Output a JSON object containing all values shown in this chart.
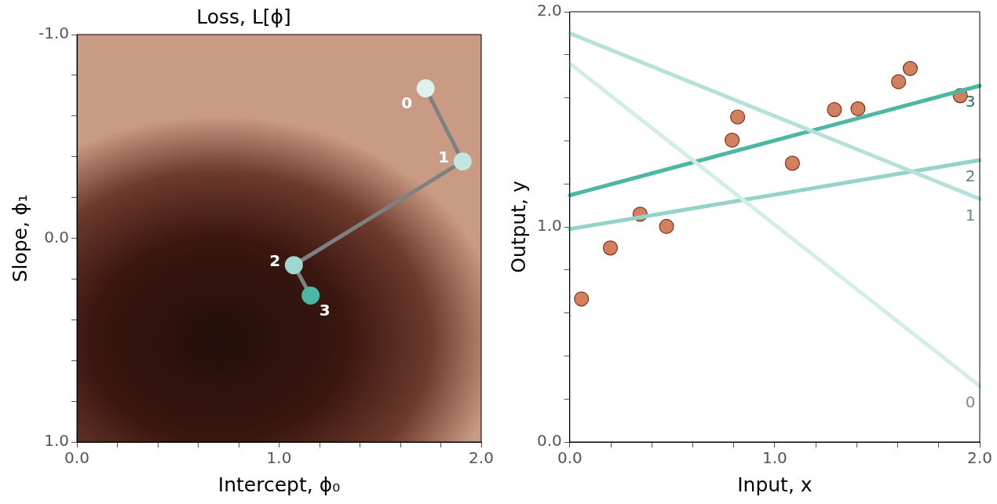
{
  "chart_data": [
    {
      "type": "line",
      "title": "Loss, L[ϕ]",
      "xlabel": "Intercept, ϕ₀",
      "ylabel": "Slope, ϕ₁",
      "xlim": [
        0,
        2
      ],
      "ylim": [
        1,
        -1
      ],
      "xticks": [
        {
          "value": 0,
          "label": "0.0"
        },
        {
          "value": 0.2,
          "label": null
        },
        {
          "value": 0.4,
          "label": null
        },
        {
          "value": 0.6,
          "label": null
        },
        {
          "value": 0.8,
          "label": null
        },
        {
          "value": 1,
          "label": "1.0"
        },
        {
          "value": 1.2,
          "label": null
        },
        {
          "value": 1.4,
          "label": null
        },
        {
          "value": 1.6,
          "label": null
        },
        {
          "value": 1.8,
          "label": null
        },
        {
          "value": 2,
          "label": "2.0"
        }
      ],
      "yticks": [
        {
          "value": -1,
          "label": "-1.0"
        },
        {
          "value": -0.8,
          "label": null
        },
        {
          "value": -0.6,
          "label": null
        },
        {
          "value": -0.4,
          "label": null
        },
        {
          "value": -0.2,
          "label": null
        },
        {
          "value": 0,
          "label": "0.0"
        },
        {
          "value": 0.2,
          "label": null
        },
        {
          "value": 0.4,
          "label": null
        },
        {
          "value": 0.6,
          "label": null
        },
        {
          "value": 0.8,
          "label": null
        },
        {
          "value": 1,
          "label": "1.0"
        }
      ],
      "grid": false,
      "legend": false,
      "marker": "circle",
      "series": [
        {
          "color": "#808080",
          "colors": [
            "#e0f0ee",
            "#c2e6e0",
            "#9fd8d0",
            "#4db6a5"
          ],
          "x": [
            1.725,
            1.908,
            1.073,
            1.156
          ],
          "values": [
            -0.736,
            -0.377,
            0.132,
            0.281
          ]
        }
      ],
      "annotations": [
        {
          "text": "0",
          "x": 1.725,
          "y": -0.736
        },
        {
          "text": "1",
          "x": 1.908,
          "y": -0.377
        },
        {
          "text": "2",
          "x": 1.073,
          "y": 0.132
        },
        {
          "text": "3",
          "x": 1.156,
          "y": 0.281
        }
      ]
    },
    {
      "type": "scatter",
      "xlabel": "Input, x",
      "ylabel": "Output, y",
      "xlim": [
        0,
        2
      ],
      "ylim": [
        0,
        2
      ],
      "xticks": [
        {
          "value": 0,
          "label": "0.0"
        },
        {
          "value": 0.2,
          "label": null
        },
        {
          "value": 0.4,
          "label": null
        },
        {
          "value": 0.6,
          "label": null
        },
        {
          "value": 0.8,
          "label": null
        },
        {
          "value": 1,
          "label": "1.0"
        },
        {
          "value": 1.2,
          "label": null
        },
        {
          "value": 1.4,
          "label": null
        },
        {
          "value": 1.6,
          "label": null
        },
        {
          "value": 1.8,
          "label": null
        },
        {
          "value": 2,
          "label": "2.0"
        }
      ],
      "yticks": [
        {
          "value": 0,
          "label": "0.0"
        },
        {
          "value": 0.2,
          "label": null
        },
        {
          "value": 0.4,
          "label": null
        },
        {
          "value": 0.6,
          "label": null
        },
        {
          "value": 0.8,
          "label": null
        },
        {
          "value": 1,
          "label": "1.0"
        },
        {
          "value": 1.2,
          "label": null
        },
        {
          "value": 1.4,
          "label": null
        },
        {
          "value": 1.6,
          "label": null
        },
        {
          "value": 1.8,
          "label": null
        },
        {
          "value": 2,
          "label": "2.0"
        }
      ],
      "grid": false,
      "legend": false,
      "marker": "circle",
      "series": [
        {
          "type": "line",
          "name": "0",
          "color": "#d4ede9",
          "marker": "none",
          "x": [
            0,
            2
          ],
          "values": [
            1.76,
            0.26
          ]
        },
        {
          "type": "line",
          "name": "1",
          "color": "#b6e1da",
          "marker": "none",
          "x": [
            0,
            2
          ],
          "values": [
            1.9,
            1.13
          ]
        },
        {
          "type": "line",
          "name": "2",
          "color": "#93d3ca",
          "marker": "none",
          "x": [
            0,
            2
          ],
          "values": [
            0.99,
            1.31
          ]
        },
        {
          "type": "line",
          "name": "3",
          "color": "#4db6a5",
          "marker": "none",
          "x": [
            0,
            2
          ],
          "values": [
            1.147,
            1.656
          ]
        },
        {
          "type": "scatter",
          "color": "#d2805e",
          "x": [
            0.057,
            0.198,
            0.343,
            0.472,
            0.792,
            0.819,
            1.086,
            1.291,
            1.406,
            1.604,
            1.661,
            1.905
          ],
          "values": [
            0.665,
            0.902,
            1.059,
            1.002,
            1.403,
            1.511,
            1.296,
            1.545,
            1.549,
            1.675,
            1.736,
            1.61
          ]
        }
      ]
    }
  ]
}
